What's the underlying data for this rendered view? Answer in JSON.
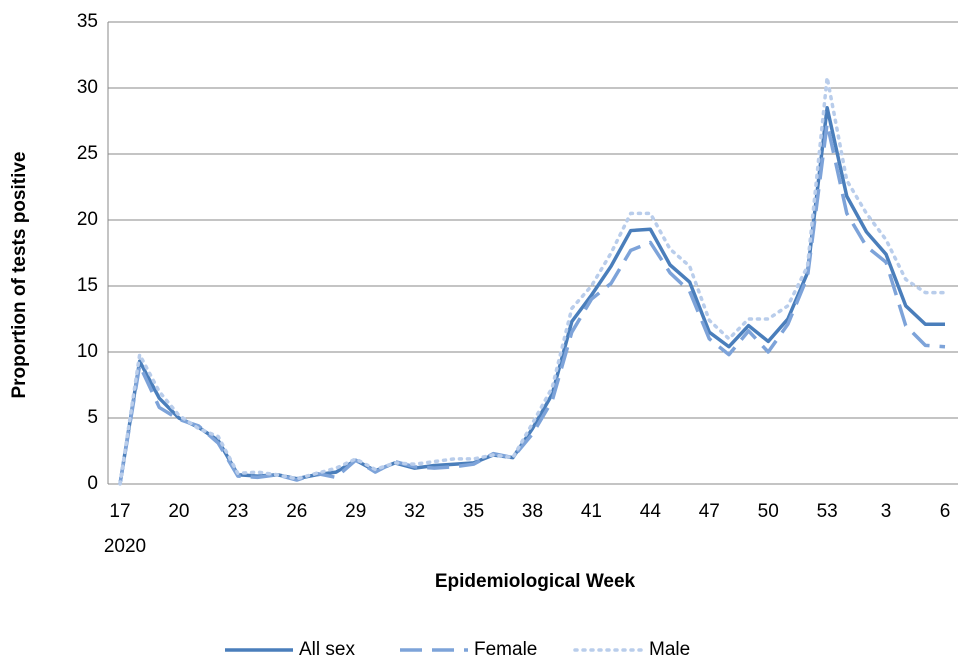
{
  "chart_data": {
    "type": "line",
    "x_label": "Epidemiological Week",
    "y_label": "Proportion of tests positive",
    "x_year_label": "2020",
    "categories": [
      "17",
      null,
      null,
      "20",
      null,
      null,
      "23",
      null,
      null,
      "26",
      null,
      null,
      "29",
      null,
      null,
      "32",
      null,
      null,
      "35",
      null,
      null,
      "38",
      null,
      null,
      "41",
      null,
      null,
      "44",
      null,
      null,
      "47",
      null,
      null,
      "50",
      null,
      null,
      "53",
      null,
      null,
      "3",
      null,
      null,
      "6"
    ],
    "series": [
      {
        "name": "All sex",
        "color": "#4a7ebb",
        "dash": "solid",
        "values": [
          0,
          9.3,
          6.5,
          5,
          4.3,
          3.3,
          0.7,
          0.6,
          0.7,
          0.4,
          0.7,
          0.9,
          1.8,
          1.0,
          1.6,
          1.2,
          1.4,
          1.5,
          1.6,
          2.2,
          2.0,
          4.2,
          6.8,
          12.3,
          14.3,
          16.5,
          19.2,
          19.3,
          16.6,
          15.3,
          11.5,
          10.4,
          12.0,
          10.8,
          12.5,
          16.0,
          28.5,
          21.8,
          19.1,
          17.4,
          13.5,
          12.1,
          12.1
        ]
      },
      {
        "name": "Female",
        "color": "#7da3d9",
        "dash": "dash",
        "values": [
          0,
          9.0,
          5.8,
          4.9,
          4.4,
          3.1,
          0.6,
          0.5,
          0.7,
          0.3,
          0.8,
          0.5,
          1.8,
          0.9,
          1.7,
          1.3,
          1.2,
          1.3,
          1.5,
          2.3,
          2.0,
          3.8,
          6.3,
          11.5,
          14.0,
          15.2,
          17.7,
          18.3,
          16.0,
          14.6,
          11.0,
          9.8,
          11.6,
          10.0,
          12.1,
          15.7,
          27.3,
          20.5,
          18.0,
          16.8,
          12.0,
          10.5,
          10.4
        ]
      },
      {
        "name": "Male",
        "color": "#b9cdeb",
        "dash": "dot",
        "values": [
          0,
          9.8,
          7.0,
          5.2,
          4.2,
          3.6,
          0.8,
          0.9,
          0.7,
          0.4,
          0.8,
          1.2,
          1.9,
          1.1,
          1.6,
          1.5,
          1.7,
          1.9,
          1.9,
          2.2,
          2.0,
          4.6,
          7.3,
          13.3,
          15.0,
          17.5,
          20.5,
          20.5,
          17.8,
          16.5,
          12.4,
          11.0,
          12.5,
          12.5,
          13.5,
          16.5,
          30.8,
          23.0,
          20.5,
          18.5,
          15.5,
          14.5,
          14.5
        ]
      }
    ],
    "ylim": [
      0,
      35
    ],
    "yticks": [
      0,
      5,
      10,
      15,
      20,
      25,
      30,
      35
    ],
    "grid": true,
    "legend": "bottom"
  }
}
